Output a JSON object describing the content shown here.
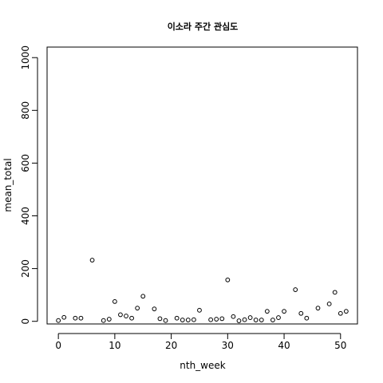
{
  "chart_data": {
    "type": "scatter",
    "title": "이소라 주간 관심도",
    "xlabel": "nth_week",
    "ylabel": "mean_total",
    "xlim": [
      -2,
      53
    ],
    "ylim": [
      -10,
      1040
    ],
    "xticks": [
      0,
      10,
      20,
      30,
      40,
      50
    ],
    "yticks": [
      0,
      200,
      400,
      600,
      800,
      1000
    ],
    "grid": false,
    "points": [
      [
        0,
        3
      ],
      [
        1,
        15
      ],
      [
        3,
        12
      ],
      [
        4,
        12
      ],
      [
        6,
        232
      ],
      [
        8,
        3
      ],
      [
        9,
        8
      ],
      [
        10,
        75
      ],
      [
        11,
        25
      ],
      [
        12,
        20
      ],
      [
        13,
        12
      ],
      [
        14,
        50
      ],
      [
        15,
        95
      ],
      [
        17,
        47
      ],
      [
        18,
        10
      ],
      [
        19,
        3
      ],
      [
        21,
        12
      ],
      [
        22,
        5
      ],
      [
        23,
        5
      ],
      [
        24,
        6
      ],
      [
        25,
        42
      ],
      [
        27,
        6
      ],
      [
        28,
        8
      ],
      [
        29,
        10
      ],
      [
        30,
        157
      ],
      [
        31,
        18
      ],
      [
        32,
        2
      ],
      [
        33,
        6
      ],
      [
        34,
        14
      ],
      [
        35,
        5
      ],
      [
        36,
        5
      ],
      [
        37,
        38
      ],
      [
        38,
        5
      ],
      [
        39,
        14
      ],
      [
        40,
        38
      ],
      [
        42,
        120
      ],
      [
        43,
        30
      ],
      [
        44,
        12
      ],
      [
        46,
        50
      ],
      [
        48,
        66
      ],
      [
        49,
        110
      ],
      [
        50,
        30
      ],
      [
        51,
        38
      ]
    ]
  }
}
